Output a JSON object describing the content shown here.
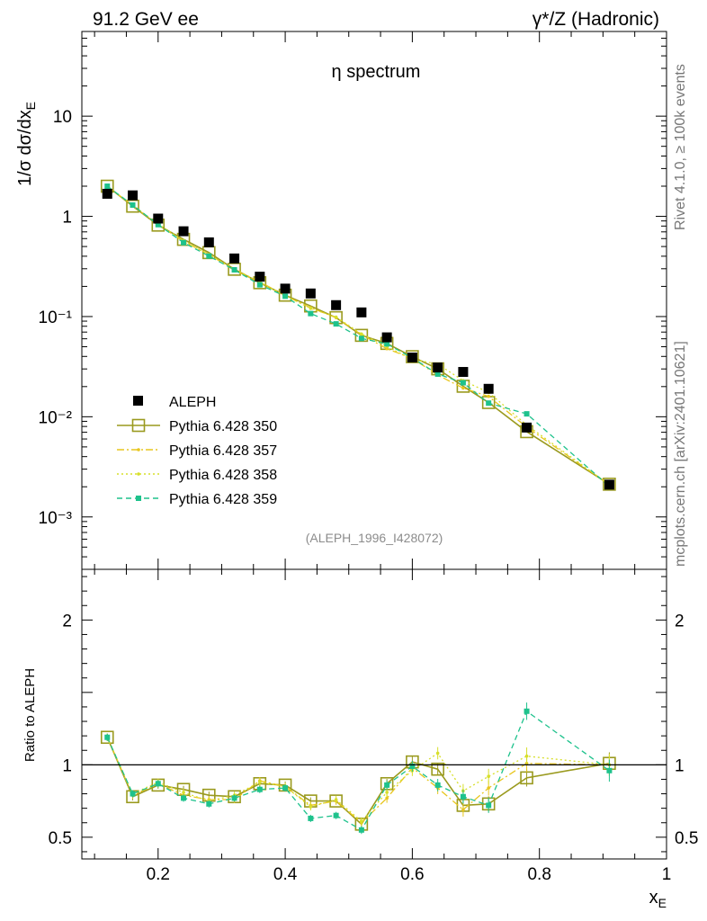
{
  "header": {
    "left": "91.2 GeV ee",
    "right": "γ*/Z (Hadronic)"
  },
  "side": {
    "rivet": "Rivet 4.1.0, ≥ 100k events",
    "mcplots": "mcplots.cern.ch [arXiv:2401.10621]"
  },
  "chart_data": {
    "type": "line",
    "title": "η spectrum",
    "analysis_id": "(ALEPH_1996_I428072)",
    "xlabel": "x_E",
    "ylabel": "1/σ  dσ/dx_E",
    "ratio_ylabel": "Ratio to ALEPH",
    "xlim": [
      0.08,
      1.0
    ],
    "ylim": [
      0.0003,
      70
    ],
    "ratio_ylim": [
      0.35,
      2.35
    ],
    "x_ticks": [
      "0.2",
      "0.4",
      "0.6",
      "0.8",
      "1"
    ],
    "y_ticks": [
      "10⁻³",
      "10⁻²",
      "10⁻¹",
      "1",
      "10"
    ],
    "ratio_ticks": [
      "0.5",
      "1",
      "2"
    ],
    "x": [
      0.12,
      0.16,
      0.2,
      0.24,
      0.28,
      0.32,
      0.36,
      0.4,
      0.44,
      0.48,
      0.52,
      0.56,
      0.6,
      0.64,
      0.68,
      0.72,
      0.78,
      0.91
    ],
    "data": {
      "name": "ALEPH",
      "values": [
        1.68,
        1.62,
        0.95,
        0.71,
        0.55,
        0.38,
        0.25,
        0.19,
        0.17,
        0.13,
        0.11,
        0.062,
        0.039,
        0.031,
        0.028,
        0.019,
        0.0078,
        0.0021
      ]
    },
    "series": [
      {
        "name": "Pythia 6.428 350",
        "color": "#9a9a1e",
        "style": "solid",
        "marker": "open-square",
        "ratio": [
          1.19,
          0.78,
          0.86,
          0.83,
          0.79,
          0.78,
          0.87,
          0.86,
          0.75,
          0.75,
          0.59,
          0.87,
          1.02,
          0.97,
          0.72,
          0.73,
          0.91,
          1.01
        ]
      },
      {
        "name": "Pythia 6.428 357",
        "color": "#e8c61e",
        "style": "dashdot",
        "marker": "small-dot",
        "ratio": [
          1.19,
          0.79,
          0.87,
          0.79,
          0.76,
          0.76,
          0.89,
          0.85,
          0.72,
          0.75,
          0.6,
          0.77,
          0.98,
          0.84,
          0.69,
          0.84,
          1.01,
          1.0
        ]
      },
      {
        "name": "Pythia 6.428 358",
        "color": "#d7df2a",
        "style": "dotted",
        "marker": "small-dot",
        "ratio": [
          1.19,
          0.8,
          0.88,
          0.81,
          0.75,
          0.79,
          0.88,
          0.85,
          0.71,
          0.76,
          0.61,
          0.81,
          0.96,
          1.08,
          0.82,
          0.92,
          1.06,
          1.0
        ]
      },
      {
        "name": "Pythia 6.428 359",
        "color": "#1ec28c",
        "style": "dashed",
        "marker": "filled-square",
        "ratio": [
          1.19,
          0.8,
          0.87,
          0.77,
          0.73,
          0.77,
          0.83,
          0.84,
          0.63,
          0.65,
          0.55,
          0.86,
          0.99,
          0.86,
          0.78,
          0.72,
          1.37,
          0.96
        ]
      }
    ]
  }
}
